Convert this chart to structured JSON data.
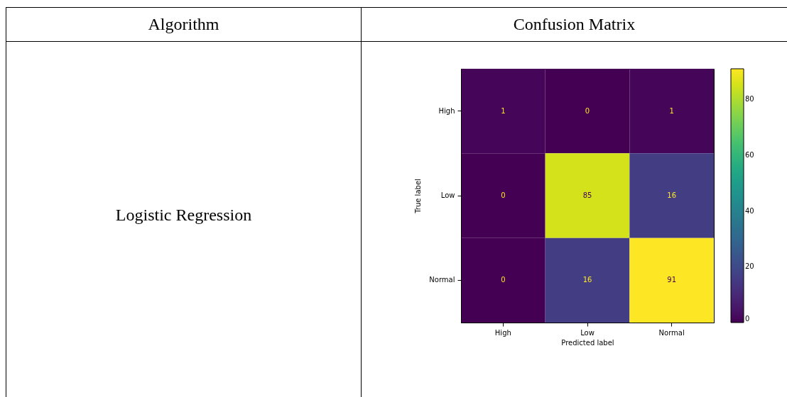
{
  "chart_data": [
    {
      "type": "other",
      "title": "Algorithm",
      "annotations": [
        "Logistic Regression"
      ]
    },
    {
      "type": "heatmap",
      "title": "Confusion Matrix",
      "xlabel": "Predicted label",
      "ylabel": "True label",
      "categories": [
        "High",
        "Low",
        "Normal"
      ],
      "y_categories": [
        "High",
        "Low",
        "Normal"
      ],
      "cells": [
        [
          1,
          0,
          1
        ],
        [
          0,
          85,
          16
        ],
        [
          0,
          16,
          91
        ]
      ],
      "clim": [
        0,
        91
      ],
      "cticks": [
        0,
        20,
        40,
        60,
        80
      ],
      "data_labels": true
    }
  ]
}
